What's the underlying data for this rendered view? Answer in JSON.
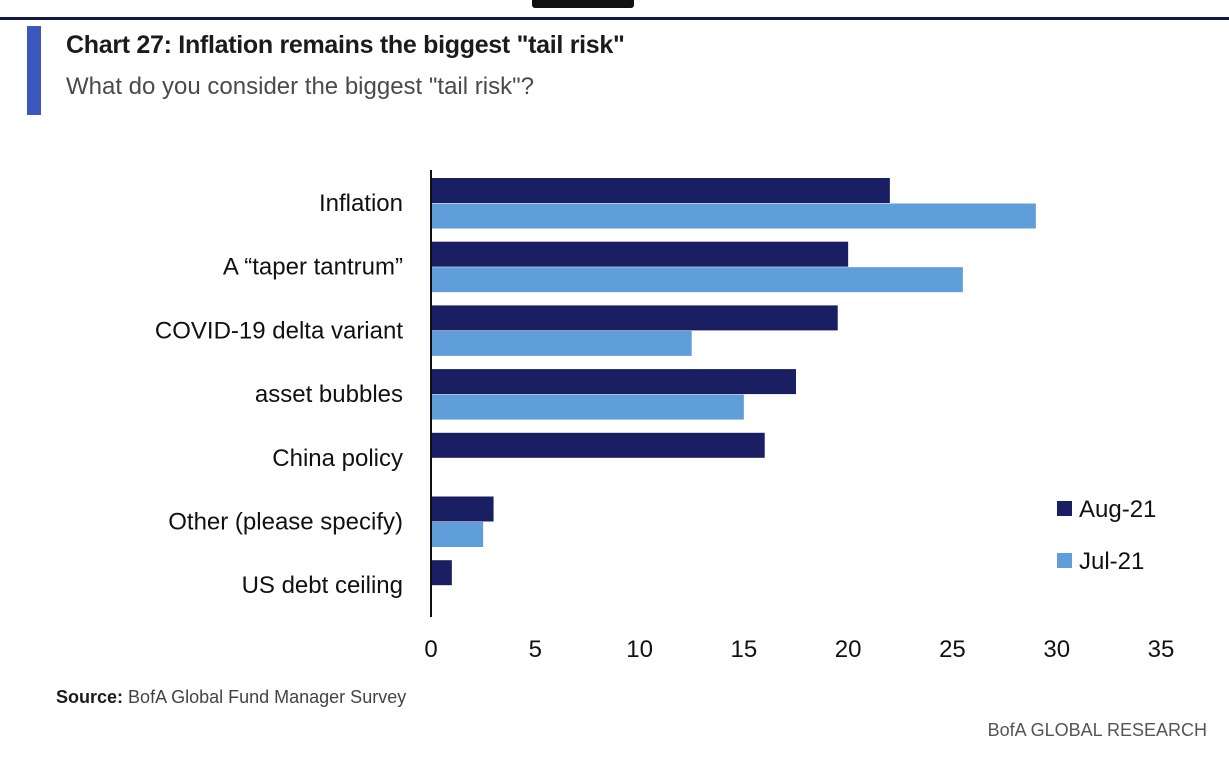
{
  "header": {
    "title": "Chart 27: Inflation remains the biggest \"tail risk\"",
    "subtitle": "What do you consider the biggest \"tail risk\"?"
  },
  "chart_data": {
    "type": "bar",
    "orientation": "horizontal",
    "categories": [
      "Inflation",
      "A “taper tantrum”",
      "COVID-19 delta variant",
      "asset bubbles",
      "China policy",
      "Other (please specify)",
      "US debt ceiling"
    ],
    "series": [
      {
        "name": "Aug-21",
        "color": "#1a1f63",
        "values": [
          22,
          20,
          19.5,
          17.5,
          16,
          3,
          1
        ]
      },
      {
        "name": "Jul-21",
        "color": "#5f9ed9",
        "values": [
          29,
          25.5,
          12.5,
          15,
          null,
          2.5,
          null
        ]
      }
    ],
    "x_ticks": [
      "0",
      "5",
      "10",
      "15",
      "20",
      "25",
      "30",
      "35"
    ],
    "xlim": [
      0,
      35
    ],
    "grid": false,
    "legend_position": "right"
  },
  "footer": {
    "source_label": "Source:",
    "source_text": "BofA Global Fund Manager Survey",
    "brand": "BofA GLOBAL RESEARCH"
  }
}
